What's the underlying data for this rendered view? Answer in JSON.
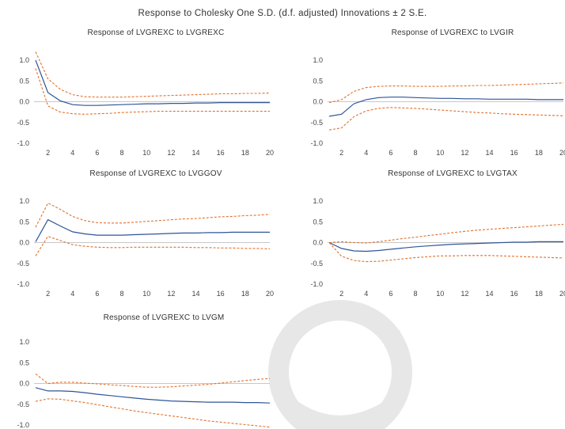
{
  "title": "Response to Cholesky One S.D. (d.f. adjusted) Innovations ± 2 S.E.",
  "colors": {
    "response": "#2f5597",
    "bands": "#e0712c",
    "zero_line": "#c8c8c8",
    "watermark": "#c8c8c8"
  },
  "chart_data": [
    {
      "type": "line",
      "title": "Response of LVGREXC to LVGREXC",
      "x": [
        1,
        2,
        3,
        4,
        5,
        6,
        7,
        8,
        9,
        10,
        11,
        12,
        13,
        14,
        15,
        16,
        17,
        18,
        19,
        20
      ],
      "xticks": [
        "2",
        "4",
        "6",
        "8",
        "10",
        "12",
        "14",
        "16",
        "18",
        "20"
      ],
      "yticks": [
        "1.0",
        "0.5",
        "0.0",
        "-0.5",
        "-1.0"
      ],
      "ylim": [
        -1.0,
        1.0
      ],
      "series": [
        {
          "role": "response",
          "values": [
            1.0,
            0.22,
            0.02,
            -0.07,
            -0.09,
            -0.09,
            -0.08,
            -0.07,
            -0.06,
            -0.05,
            -0.05,
            -0.04,
            -0.04,
            -0.03,
            -0.03,
            -0.02,
            -0.02,
            -0.02,
            -0.02,
            -0.02
          ]
        },
        {
          "role": "upper",
          "values": [
            1.2,
            0.55,
            0.3,
            0.17,
            0.12,
            0.11,
            0.11,
            0.11,
            0.12,
            0.13,
            0.14,
            0.15,
            0.16,
            0.17,
            0.18,
            0.19,
            0.19,
            0.2,
            0.2,
            0.21
          ]
        },
        {
          "role": "lower",
          "values": [
            0.8,
            -0.1,
            -0.25,
            -0.29,
            -0.3,
            -0.29,
            -0.28,
            -0.26,
            -0.25,
            -0.24,
            -0.23,
            -0.23,
            -0.23,
            -0.23,
            -0.23,
            -0.23,
            -0.23,
            -0.23,
            -0.23,
            -0.23
          ]
        }
      ]
    },
    {
      "type": "line",
      "title": "Response of LVGREXC to LVGIR",
      "x": [
        1,
        2,
        3,
        4,
        5,
        6,
        7,
        8,
        9,
        10,
        11,
        12,
        13,
        14,
        15,
        16,
        17,
        18,
        19,
        20
      ],
      "xticks": [
        "2",
        "4",
        "6",
        "8",
        "10",
        "12",
        "14",
        "16",
        "18",
        "20"
      ],
      "yticks": [
        "1.0",
        "0.5",
        "0.0",
        "-0.5",
        "-1.0"
      ],
      "ylim": [
        -1.0,
        1.0
      ],
      "series": [
        {
          "role": "response",
          "values": [
            -0.35,
            -0.3,
            -0.05,
            0.05,
            0.1,
            0.11,
            0.11,
            0.1,
            0.09,
            0.08,
            0.08,
            0.07,
            0.07,
            0.06,
            0.06,
            0.06,
            0.06,
            0.05,
            0.05,
            0.05
          ]
        },
        {
          "role": "upper",
          "values": [
            -0.02,
            0.05,
            0.25,
            0.34,
            0.37,
            0.38,
            0.38,
            0.37,
            0.37,
            0.37,
            0.38,
            0.38,
            0.39,
            0.39,
            0.4,
            0.41,
            0.42,
            0.43,
            0.44,
            0.45
          ]
        },
        {
          "role": "lower",
          "values": [
            -0.68,
            -0.63,
            -0.36,
            -0.22,
            -0.16,
            -0.14,
            -0.15,
            -0.16,
            -0.18,
            -0.2,
            -0.22,
            -0.24,
            -0.26,
            -0.27,
            -0.29,
            -0.3,
            -0.31,
            -0.32,
            -0.33,
            -0.34
          ]
        }
      ]
    },
    {
      "type": "line",
      "title": "Response of LVGREXC to LVGGOV",
      "x": [
        1,
        2,
        3,
        4,
        5,
        6,
        7,
        8,
        9,
        10,
        11,
        12,
        13,
        14,
        15,
        16,
        17,
        18,
        19,
        20
      ],
      "xticks": [
        "2",
        "4",
        "6",
        "8",
        "10",
        "12",
        "14",
        "16",
        "18",
        "20"
      ],
      "yticks": [
        "1.0",
        "0.5",
        "0.0",
        "-0.5",
        "-1.0"
      ],
      "ylim": [
        -1.0,
        1.0
      ],
      "series": [
        {
          "role": "response",
          "values": [
            0.02,
            0.55,
            0.4,
            0.26,
            0.21,
            0.18,
            0.18,
            0.18,
            0.19,
            0.2,
            0.21,
            0.22,
            0.23,
            0.23,
            0.24,
            0.24,
            0.25,
            0.25,
            0.25,
            0.25
          ]
        },
        {
          "role": "upper",
          "values": [
            0.37,
            0.95,
            0.8,
            0.63,
            0.53,
            0.48,
            0.47,
            0.47,
            0.49,
            0.51,
            0.53,
            0.55,
            0.57,
            0.58,
            0.6,
            0.62,
            0.63,
            0.65,
            0.66,
            0.68
          ]
        },
        {
          "role": "lower",
          "values": [
            -0.32,
            0.15,
            0.05,
            -0.05,
            -0.09,
            -0.11,
            -0.12,
            -0.12,
            -0.11,
            -0.11,
            -0.11,
            -0.11,
            -0.11,
            -0.12,
            -0.12,
            -0.13,
            -0.13,
            -0.14,
            -0.14,
            -0.15
          ]
        }
      ]
    },
    {
      "type": "line",
      "title": "Response of LVGREXC to LVGTAX",
      "x": [
        1,
        2,
        3,
        4,
        5,
        6,
        7,
        8,
        9,
        10,
        11,
        12,
        13,
        14,
        15,
        16,
        17,
        18,
        19,
        20
      ],
      "xticks": [
        "2",
        "4",
        "6",
        "8",
        "10",
        "12",
        "14",
        "16",
        "18",
        "20"
      ],
      "yticks": [
        "1.0",
        "0.5",
        "0.0",
        "-0.5",
        "-1.0"
      ],
      "ylim": [
        -1.0,
        1.0
      ],
      "series": [
        {
          "role": "response",
          "values": [
            0.0,
            -0.14,
            -0.2,
            -0.21,
            -0.19,
            -0.16,
            -0.13,
            -0.1,
            -0.08,
            -0.06,
            -0.04,
            -0.03,
            -0.02,
            -0.01,
            0.0,
            0.01,
            0.01,
            0.02,
            0.02,
            0.02
          ]
        },
        {
          "role": "upper",
          "values": [
            0.0,
            0.02,
            0.0,
            -0.01,
            0.02,
            0.06,
            0.1,
            0.13,
            0.17,
            0.2,
            0.24,
            0.27,
            0.3,
            0.32,
            0.34,
            0.36,
            0.38,
            0.4,
            0.42,
            0.44
          ]
        },
        {
          "role": "lower",
          "values": [
            0.0,
            -0.33,
            -0.43,
            -0.46,
            -0.45,
            -0.42,
            -0.39,
            -0.36,
            -0.34,
            -0.32,
            -0.32,
            -0.31,
            -0.31,
            -0.31,
            -0.32,
            -0.33,
            -0.34,
            -0.35,
            -0.36,
            -0.37
          ]
        }
      ]
    },
    {
      "type": "line",
      "title": "Response of LVGREXC to LVGM",
      "x": [
        1,
        2,
        3,
        4,
        5,
        6,
        7,
        8,
        9,
        10,
        11,
        12,
        13,
        14,
        15,
        16,
        17,
        18,
        19,
        20
      ],
      "xticks": [],
      "yticks": [
        "1.0",
        "0.5",
        "0.0",
        "-0.5",
        "-1.0"
      ],
      "ylim": [
        -1.0,
        1.0
      ],
      "series": [
        {
          "role": "response",
          "values": [
            -0.1,
            -0.18,
            -0.18,
            -0.19,
            -0.22,
            -0.26,
            -0.29,
            -0.32,
            -0.35,
            -0.38,
            -0.4,
            -0.42,
            -0.43,
            -0.44,
            -0.45,
            -0.45,
            -0.45,
            -0.46,
            -0.46,
            -0.47
          ]
        },
        {
          "role": "upper",
          "values": [
            0.23,
            0.0,
            0.03,
            0.03,
            0.01,
            -0.01,
            -0.03,
            -0.05,
            -0.07,
            -0.09,
            -0.09,
            -0.08,
            -0.06,
            -0.04,
            -0.02,
            0.01,
            0.04,
            0.07,
            0.1,
            0.12
          ]
        },
        {
          "role": "lower",
          "values": [
            -0.43,
            -0.37,
            -0.38,
            -0.42,
            -0.46,
            -0.51,
            -0.56,
            -0.61,
            -0.66,
            -0.7,
            -0.74,
            -0.78,
            -0.82,
            -0.86,
            -0.9,
            -0.93,
            -0.96,
            -0.99,
            -1.02,
            -1.05
          ]
        }
      ]
    }
  ]
}
